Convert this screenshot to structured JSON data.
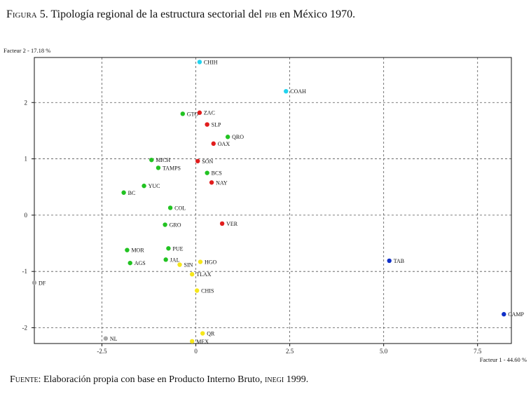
{
  "figure": {
    "label": "Figura 5.",
    "title_part1": " Tipología regional de la estructura sectorial del ",
    "title_pib": "pib",
    "title_part2": " en México 1970."
  },
  "source": {
    "label": "Fuente:",
    "text_part1": " Elaboración propia con base en Producto Interno Bruto, ",
    "text_inegi": "inegi",
    "text_part2": " 1999."
  },
  "chart_data": {
    "type": "scatter",
    "title": "Tipología regional de la estructura sectorial del PIB en México 1970.",
    "xlabel": "Facteur 1 - 44.60 %",
    "ylabel": "Facteur 2 - 17.18 %",
    "xlim": [
      -4.3,
      8.4
    ],
    "ylim": [
      -2.28,
      2.8
    ],
    "x_ticks": [
      -2.5,
      0,
      2.5,
      5.0,
      7.5
    ],
    "x_tick_labels": [
      "-2.5",
      "0",
      "2.5",
      "5.0",
      "7.5"
    ],
    "y_ticks": [
      2,
      1,
      0,
      -1,
      -2
    ],
    "y_tick_labels": [
      "2",
      "1",
      "0",
      "-1",
      "-2"
    ],
    "colors": {
      "cyan": "#22d3ee",
      "red": "#e11d1d",
      "green": "#22c322",
      "yellow": "#f5e61a",
      "blue": "#1030c8",
      "gray": "#a8a8a8",
      "grid": "#555555",
      "frame": "#111111"
    },
    "points": [
      {
        "label": "CHIH",
        "x": 0.1,
        "y": 2.72,
        "color": "cyan"
      },
      {
        "label": "COAH",
        "x": 2.4,
        "y": 2.2,
        "color": "cyan"
      },
      {
        "label": "GTO",
        "x": -0.35,
        "y": 1.8,
        "color": "green"
      },
      {
        "label": "ZAC",
        "x": 0.1,
        "y": 1.82,
        "color": "red"
      },
      {
        "label": "SLP",
        "x": 0.3,
        "y": 1.61,
        "color": "red"
      },
      {
        "label": "QRO",
        "x": 0.85,
        "y": 1.39,
        "color": "green"
      },
      {
        "label": "OAX",
        "x": 0.47,
        "y": 1.27,
        "color": "red"
      },
      {
        "label": "MICH",
        "x": -1.18,
        "y": 0.98,
        "color": "green"
      },
      {
        "label": "SON",
        "x": 0.05,
        "y": 0.96,
        "color": "red"
      },
      {
        "label": "TAMPS",
        "x": -1.0,
        "y": 0.84,
        "color": "green"
      },
      {
        "label": "BCS",
        "x": 0.3,
        "y": 0.75,
        "color": "green"
      },
      {
        "label": "NAY",
        "x": 0.42,
        "y": 0.58,
        "color": "red"
      },
      {
        "label": "YUC",
        "x": -1.38,
        "y": 0.52,
        "color": "green"
      },
      {
        "label": "BC",
        "x": -1.92,
        "y": 0.4,
        "color": "green"
      },
      {
        "label": "COL",
        "x": -0.68,
        "y": 0.13,
        "color": "green"
      },
      {
        "label": "GRO",
        "x": -0.82,
        "y": -0.17,
        "color": "green"
      },
      {
        "label": "VER",
        "x": 0.7,
        "y": -0.15,
        "color": "red"
      },
      {
        "label": "MOR",
        "x": -1.83,
        "y": -0.62,
        "color": "green"
      },
      {
        "label": "PUE",
        "x": -0.73,
        "y": -0.59,
        "color": "green"
      },
      {
        "label": "JAL",
        "x": -0.8,
        "y": -0.79,
        "color": "green"
      },
      {
        "label": "AGS",
        "x": -1.75,
        "y": -0.85,
        "color": "green"
      },
      {
        "label": "SIN",
        "x": -0.43,
        "y": -0.88,
        "color": "yellow"
      },
      {
        "label": "HGO",
        "x": 0.12,
        "y": -0.83,
        "color": "yellow"
      },
      {
        "label": "TAB",
        "x": 5.15,
        "y": -0.81,
        "color": "blue"
      },
      {
        "label": "TLAX",
        "x": -0.1,
        "y": -1.05,
        "color": "yellow"
      },
      {
        "label": "DF",
        "x": -4.3,
        "y": -1.2,
        "color": "gray"
      },
      {
        "label": "CHIS",
        "x": 0.03,
        "y": -1.34,
        "color": "yellow"
      },
      {
        "label": "CAMP",
        "x": 8.2,
        "y": -1.76,
        "color": "blue"
      },
      {
        "label": "QR",
        "x": 0.18,
        "y": -2.1,
        "color": "yellow"
      },
      {
        "label": "NL",
        "x": -2.4,
        "y": -2.19,
        "color": "gray"
      },
      {
        "label": "MEX",
        "x": -0.1,
        "y": -2.24,
        "color": "yellow"
      }
    ]
  }
}
